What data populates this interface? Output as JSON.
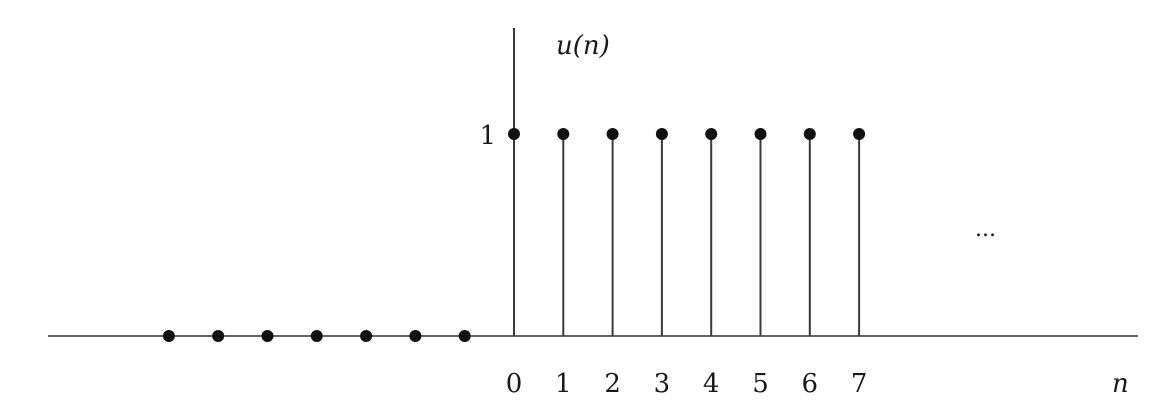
{
  "chart_data": {
    "type": "stem",
    "title": "",
    "ylabel": "u(n)",
    "xlabel": "n",
    "x": [
      -7,
      -6,
      -5,
      -4,
      -3,
      -2,
      -1,
      0,
      1,
      2,
      3,
      4,
      5,
      6,
      7
    ],
    "y": [
      0,
      0,
      0,
      0,
      0,
      0,
      0,
      1,
      1,
      1,
      1,
      1,
      1,
      1,
      1
    ],
    "tick_labels_x": [
      "0",
      "1",
      "2",
      "3",
      "4",
      "5",
      "6",
      "7"
    ],
    "tick_labels_y": [
      "1"
    ],
    "continuation": "...",
    "xlim": [
      -8,
      12
    ],
    "ylim": [
      0,
      1.3
    ],
    "grid": false,
    "colors": {
      "axis": "#5a6772",
      "stem": "#3a3a3a",
      "marker": "#111111",
      "text": "#1a1a1a"
    }
  }
}
